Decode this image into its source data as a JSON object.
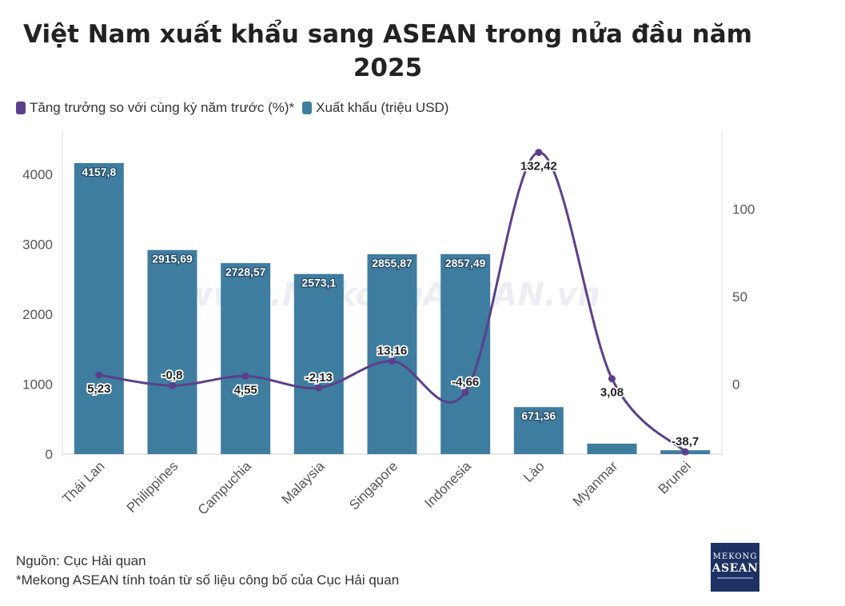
{
  "title": "Việt Nam xuất khẩu sang ASEAN trong nửa đầu năm 2025",
  "legend": {
    "growth_label": "Tăng trưởng so với cùng kỳ năm trước (%)*",
    "export_label": "Xuất khẩu (triệu USD)"
  },
  "watermark": "www.MekongASEAN.vn",
  "source": {
    "line1": "Nguồn: Cục Hải quan",
    "line2": "*Mekong ASEAN tính toán từ số liệu công bố của Cục Hải quan"
  },
  "logo": {
    "line1": "MEKONG",
    "line2": "ASEAN"
  },
  "colors": {
    "bar": "#3f7da0",
    "line": "#5b3f8c",
    "axis_text": "#555555",
    "grid": "#dddddd"
  },
  "chart_data": {
    "type": "bar",
    "categories": [
      "Thái Lan",
      "Philippines",
      "Campuchia",
      "Malaysia",
      "Singapore",
      "Indonesia",
      "Lào",
      "Myanmar",
      "Brunei"
    ],
    "series": [
      {
        "name": "Xuất khẩu (triệu USD)",
        "type": "bar",
        "axis": "left",
        "values": [
          4157.8,
          2915.69,
          2728.57,
          2573.1,
          2855.87,
          2857.49,
          671.36,
          150,
          55
        ],
        "labels": [
          "4157,8",
          "2915,69",
          "2728,57",
          "2573,1",
          "2855,87",
          "2857,49",
          "671,36",
          "",
          ""
        ]
      },
      {
        "name": "Tăng trưởng so với cùng kỳ năm trước (%)*",
        "type": "line",
        "axis": "right",
        "values": [
          5.23,
          -0.8,
          4.55,
          -2.13,
          13.16,
          -4.66,
          132.42,
          3.08,
          -38.7
        ],
        "labels": [
          "5,23",
          "-0,8",
          "4,55",
          "-2,13",
          "13,16",
          "-4,66",
          "132,42",
          "3,08",
          "-38,7"
        ]
      }
    ],
    "y_left": {
      "min": 0,
      "max": 4500,
      "ticks": [
        0,
        1000,
        2000,
        3000,
        4000
      ]
    },
    "y_right": {
      "min": -40,
      "max": 140,
      "ticks": [
        0,
        50,
        100
      ]
    },
    "grid": false,
    "legend_position": "top-left"
  }
}
